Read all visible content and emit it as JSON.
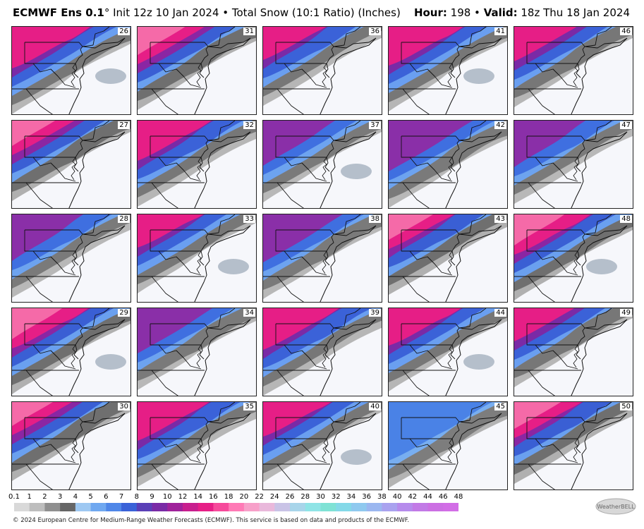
{
  "header": {
    "model": "ECMWF Ens 0.1",
    "degree": "°",
    "init": " Init 12z 10 Jan 2024 • Total Snow (10:1 Ratio) (Inches)",
    "hour_label": "Hour:",
    "hour_value": " 198 • ",
    "valid_label": "Valid:",
    "valid_value": " 18z Thu 18 Jan 2024"
  },
  "members": [
    [
      "26",
      "31",
      "36",
      "41",
      "46"
    ],
    [
      "27",
      "32",
      "37",
      "42",
      "47"
    ],
    [
      "28",
      "33",
      "38",
      "43",
      "48"
    ],
    [
      "29",
      "34",
      "39",
      "44",
      "49"
    ],
    [
      "30",
      "35",
      "40",
      "45",
      "50"
    ]
  ],
  "colorbar": {
    "ticks": [
      "0.1",
      "1",
      "2",
      "3",
      "4",
      "5",
      "6",
      "7",
      "8",
      "9",
      "10",
      "12",
      "14",
      "16",
      "18",
      "20",
      "22",
      "24",
      "26",
      "28",
      "30",
      "32",
      "34",
      "36",
      "38",
      "40",
      "42",
      "44",
      "46",
      "48"
    ],
    "colors": [
      "#d9d9d9",
      "#bdbdbd",
      "#8f8f8f",
      "#666666",
      "#9ec8f2",
      "#6fa8f0",
      "#4f87e8",
      "#3a62d8",
      "#5a3fb7",
      "#7a2aa6",
      "#a0229b",
      "#c81e8e",
      "#e61e86",
      "#f64a9b",
      "#ff7ab6",
      "#f7a0c9",
      "#e9b8db",
      "#c9c3e6",
      "#a8d5ea",
      "#8fe4e6",
      "#7fe2d5",
      "#84d9e8",
      "#8fc9ef",
      "#9bb7f0",
      "#a9a2ef",
      "#b68bec",
      "#c27ae6",
      "#cc6fe3",
      "#d26ee6"
    ]
  },
  "footer": {
    "text": "© 2024 European Centre for Medium-Range Weather Forecasts (ECMWF). This service is based on data and products of the ECMWF."
  },
  "logo": {
    "text": "WeatherBELL"
  }
}
